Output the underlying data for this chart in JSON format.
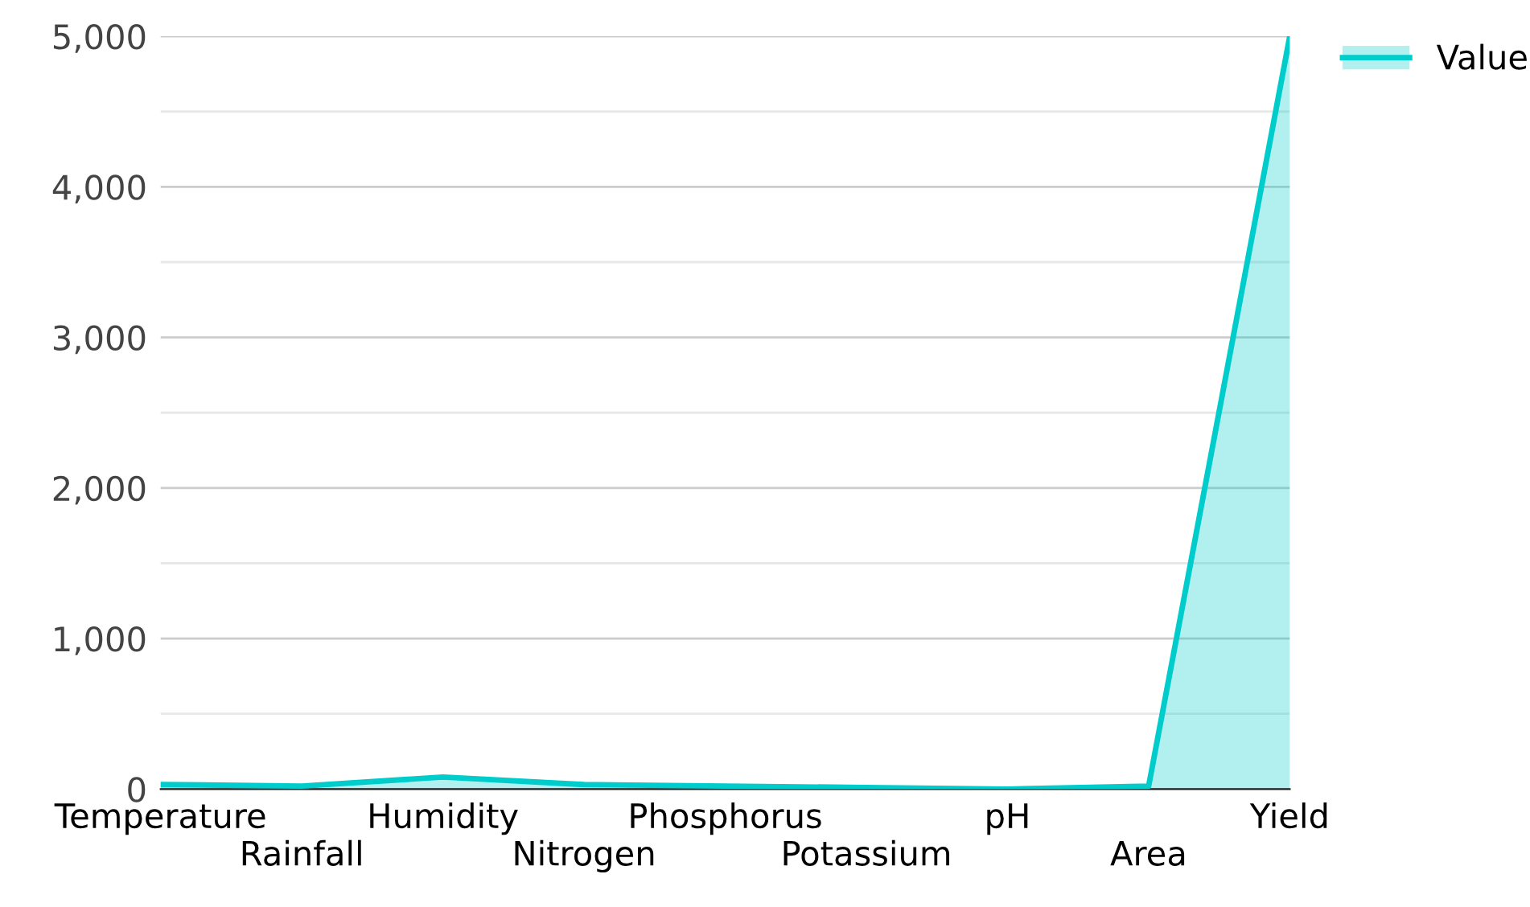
{
  "chart_data": {
    "type": "area",
    "categories": [
      "Temperature",
      "Rainfall",
      "Humidity",
      "Nitrogen",
      "Phosphorus",
      "Potassium",
      "pH",
      "Area",
      "Yield"
    ],
    "series": [
      {
        "name": "Value",
        "color": "#00cccc",
        "values": [
          30,
          20,
          80,
          30,
          20,
          10,
          0,
          20,
          5000
        ]
      }
    ],
    "ylim": [
      0,
      5000
    ],
    "yticks": [
      0,
      {
        "value": 500,
        "label": null
      },
      {
        "value": 1000,
        "label": "1,000"
      },
      {
        "value": 1500,
        "label": null
      },
      {
        "value": 2000,
        "label": "2,000"
      },
      {
        "value": 2500,
        "label": null
      },
      {
        "value": 3000,
        "label": "3,000"
      },
      {
        "value": 3500,
        "label": null
      },
      {
        "value": 4000,
        "label": "4,000"
      },
      {
        "value": 4500,
        "label": null
      },
      {
        "value": 5000,
        "label": "5,000"
      }
    ],
    "grid": "y",
    "legend": "top right"
  }
}
